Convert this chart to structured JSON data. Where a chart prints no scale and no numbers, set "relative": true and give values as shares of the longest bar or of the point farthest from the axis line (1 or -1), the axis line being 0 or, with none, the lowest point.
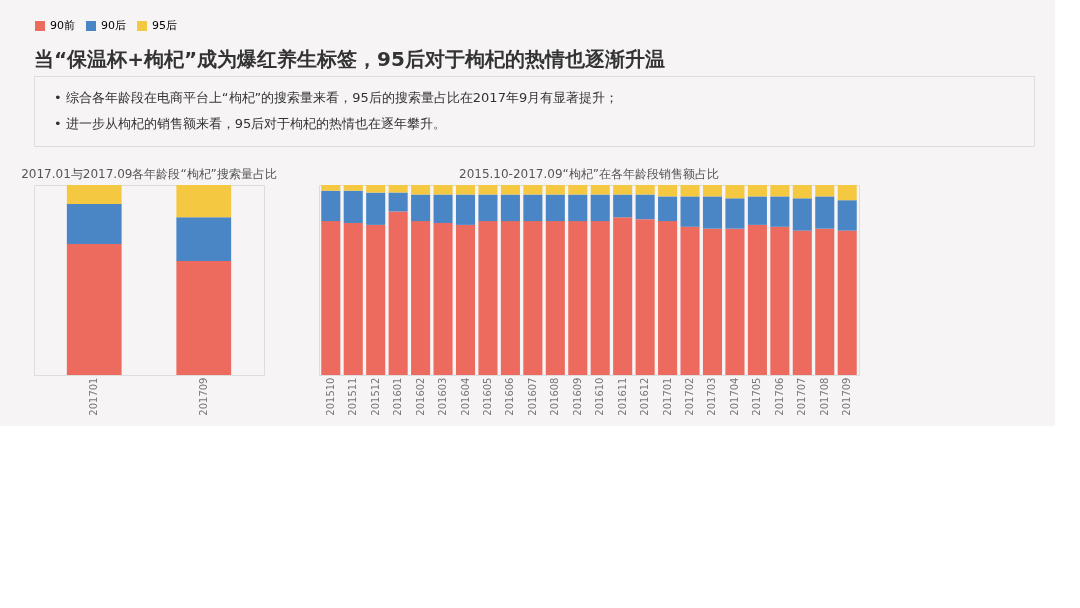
{
  "chart_data": [
    {
      "type": "other",
      "title": "当“保温杯+枸杞”成为爆红养生标签，95后对于枸杞的热情也逐渐升温",
      "annotations": [
        "•  综合各年龄段在电商平台上“枸杞”的搜索量来看，95后的搜索量占比在2017年9月有显著提升；",
        "•  进一步从枸杞的销售额来看，95后对于枸杞的热情也在逐年攀升。"
      ]
    },
    {
      "type": "bar",
      "title": "2017.01与2017.09各年龄段“枸杞”搜索量占比",
      "stacked": true,
      "relative": true,
      "legend": "top",
      "categories": [
        "201701",
        "201709"
      ],
      "series": [
        {
          "name": "90前",
          "color": "#ec6a5e",
          "values": [
            0.69,
            0.6
          ]
        },
        {
          "name": "90后",
          "color": "#4a86c5",
          "values": [
            0.21,
            0.23
          ]
        },
        {
          "name": "95后",
          "color": "#f5c842",
          "values": [
            0.1,
            0.17
          ]
        }
      ]
    },
    {
      "type": "bar",
      "title": "2015.10-2017.09“枸杞”在各年龄段销售额占比",
      "stacked": true,
      "relative": true,
      "legend": "top",
      "categories": [
        "201510",
        "201511",
        "201512",
        "201601",
        "201602",
        "201603",
        "201604",
        "201605",
        "201606",
        "201607",
        "201608",
        "201609",
        "201610",
        "201611",
        "201612",
        "201701",
        "201702",
        "201703",
        "201704",
        "201705",
        "201706",
        "201707",
        "201708",
        "201709"
      ],
      "series": [
        {
          "name": "90前",
          "color": "#ec6a5e",
          "values": [
            0.81,
            0.8,
            0.79,
            0.86,
            0.81,
            0.8,
            0.79,
            0.81,
            0.81,
            0.81,
            0.81,
            0.81,
            0.81,
            0.83,
            0.82,
            0.81,
            0.78,
            0.77,
            0.77,
            0.79,
            0.78,
            0.76,
            0.77,
            0.76
          ]
        },
        {
          "name": "90后",
          "color": "#4a86c5",
          "values": [
            0.16,
            0.17,
            0.17,
            0.1,
            0.14,
            0.15,
            0.16,
            0.14,
            0.14,
            0.14,
            0.14,
            0.14,
            0.14,
            0.12,
            0.13,
            0.13,
            0.16,
            0.17,
            0.16,
            0.15,
            0.16,
            0.17,
            0.17,
            0.16
          ]
        },
        {
          "name": "95后",
          "color": "#f5c842",
          "values": [
            0.03,
            0.03,
            0.04,
            0.04,
            0.05,
            0.05,
            0.05,
            0.05,
            0.05,
            0.05,
            0.05,
            0.05,
            0.05,
            0.05,
            0.05,
            0.06,
            0.06,
            0.06,
            0.07,
            0.06,
            0.06,
            0.07,
            0.06,
            0.08
          ]
        }
      ]
    }
  ]
}
